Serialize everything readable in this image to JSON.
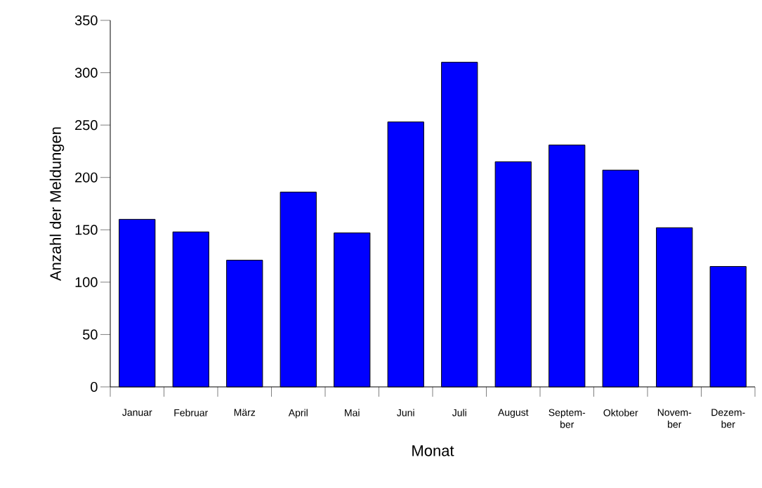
{
  "chart_data": {
    "type": "bar",
    "xlabel": "Monat",
    "ylabel": "Anzahl der Meldungen",
    "categories": [
      "Januar",
      "Februar",
      "März",
      "April",
      "Mai",
      "Juni",
      "Juli",
      "August",
      "Septem- ber",
      "Oktober",
      "Novem- ber",
      "Dezem- ber"
    ],
    "values": [
      160,
      148,
      121,
      186,
      147,
      253,
      310,
      215,
      231,
      207,
      152,
      115
    ],
    "color": "#0000ff",
    "ylim": [
      0,
      350
    ],
    "yticks": [
      0,
      50,
      100,
      150,
      200,
      250,
      300,
      350
    ],
    "grid": false
  }
}
